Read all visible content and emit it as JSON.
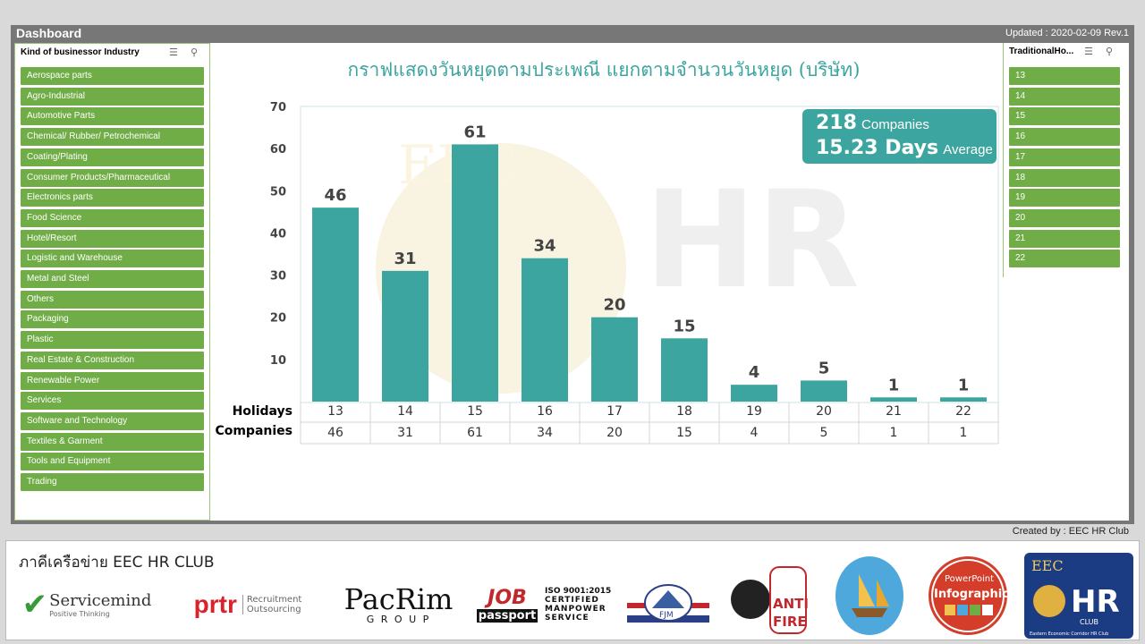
{
  "header": {
    "title": "Dashboard",
    "updated": "Updated : 2020-02-09 Rev.1"
  },
  "industry_slicer": {
    "title": "Kind of businessor Industry",
    "items": [
      "Aerospace parts",
      "Agro-Industrial",
      "Automotive Parts",
      "Chemical/ Rubber/ Petrochemical",
      "Coating/Plating",
      "Consumer Products/Pharmaceutical",
      "Electronics parts",
      "Food Science",
      "Hotel/Resort",
      "Logistic and Warehouse",
      "Metal and Steel",
      "Others",
      "Packaging",
      "Plastic",
      "Real Estate & Construction",
      "Renewable Power",
      "Services",
      "Software and Technology",
      "Textiles & Garment",
      "Tools and Equipment",
      "Trading"
    ]
  },
  "holiday_slicer": {
    "title": "TraditionalHo...",
    "items": [
      "13",
      "14",
      "15",
      "16",
      "17",
      "18",
      "19",
      "20",
      "21",
      "22"
    ]
  },
  "stats": {
    "companies_value": "218",
    "companies_label": "Companies",
    "days_value": "15.23 Days",
    "days_label": "Average"
  },
  "table": {
    "row1_label": "Holidays",
    "row2_label": "Companies"
  },
  "chart_data": {
    "type": "bar",
    "title": "กราฟแสดงวันหยุดตามประเพณี แยกตามจำนวนวันหยุด (บริษัท)",
    "categories": [
      "13",
      "14",
      "15",
      "16",
      "17",
      "18",
      "19",
      "20",
      "21",
      "22"
    ],
    "values": [
      46,
      31,
      61,
      34,
      20,
      15,
      4,
      5,
      1,
      1
    ],
    "ylim": [
      0,
      70
    ],
    "yticks": [
      "10",
      "20",
      "30",
      "40",
      "50",
      "60",
      "70"
    ],
    "color": "#3ca59f"
  },
  "footer": {
    "created": "Created by : EEC HR Club",
    "title": "ภาคีเครือข่าย EEC HR CLUB",
    "logos": {
      "servicemind": "Servicemind",
      "servicemind_tag": "Positive Thinking",
      "prtr": "prtr",
      "prtr_tag1": "Recruitment",
      "prtr_tag2": "Outsourcing",
      "pacrim": "PacRim",
      "pacrim_tag": "G R O U P",
      "job": "JOB",
      "passport": "passport",
      "iso1": "ISO 9001:2015",
      "iso2": "CERTIFIED",
      "iso3": "MANPOWER",
      "iso4": "SERVICE",
      "fjm": "FJM",
      "anti": "ANTI",
      "fire": "FIRE",
      "ppt1": "PowerPoint",
      "ppt2": "Infographic",
      "eec": "EEC",
      "hr": "HR",
      "club": "CLUB",
      "eec_tag": "Eastern Economic Corridor HR Club"
    }
  }
}
